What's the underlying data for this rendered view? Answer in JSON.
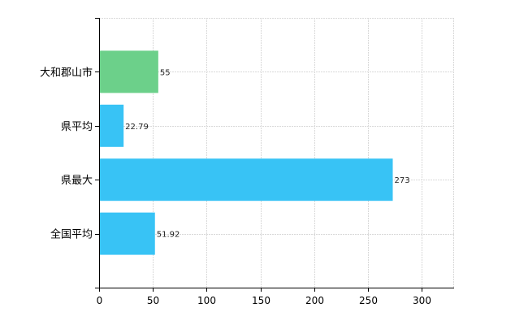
{
  "chart_data": {
    "type": "bar",
    "orientation": "horizontal",
    "categories": [
      "大和郡山市",
      "県平均",
      "県最大",
      "全国平均"
    ],
    "values": [
      55,
      22.79,
      273,
      51.92
    ],
    "value_labels": [
      "55",
      "22.79",
      "273",
      "51.92"
    ],
    "bar_colors": [
      "#6cd08a",
      "#38c3f5",
      "#38c3f5",
      "#38c3f5"
    ],
    "x_ticks": [
      0,
      50,
      100,
      150,
      200,
      250,
      300
    ],
    "x_tick_labels": [
      "0",
      "50",
      "100",
      "150",
      "200",
      "250",
      "300"
    ],
    "xlim": [
      0,
      330
    ],
    "grid": true,
    "title": "",
    "xlabel": "",
    "ylabel": ""
  }
}
